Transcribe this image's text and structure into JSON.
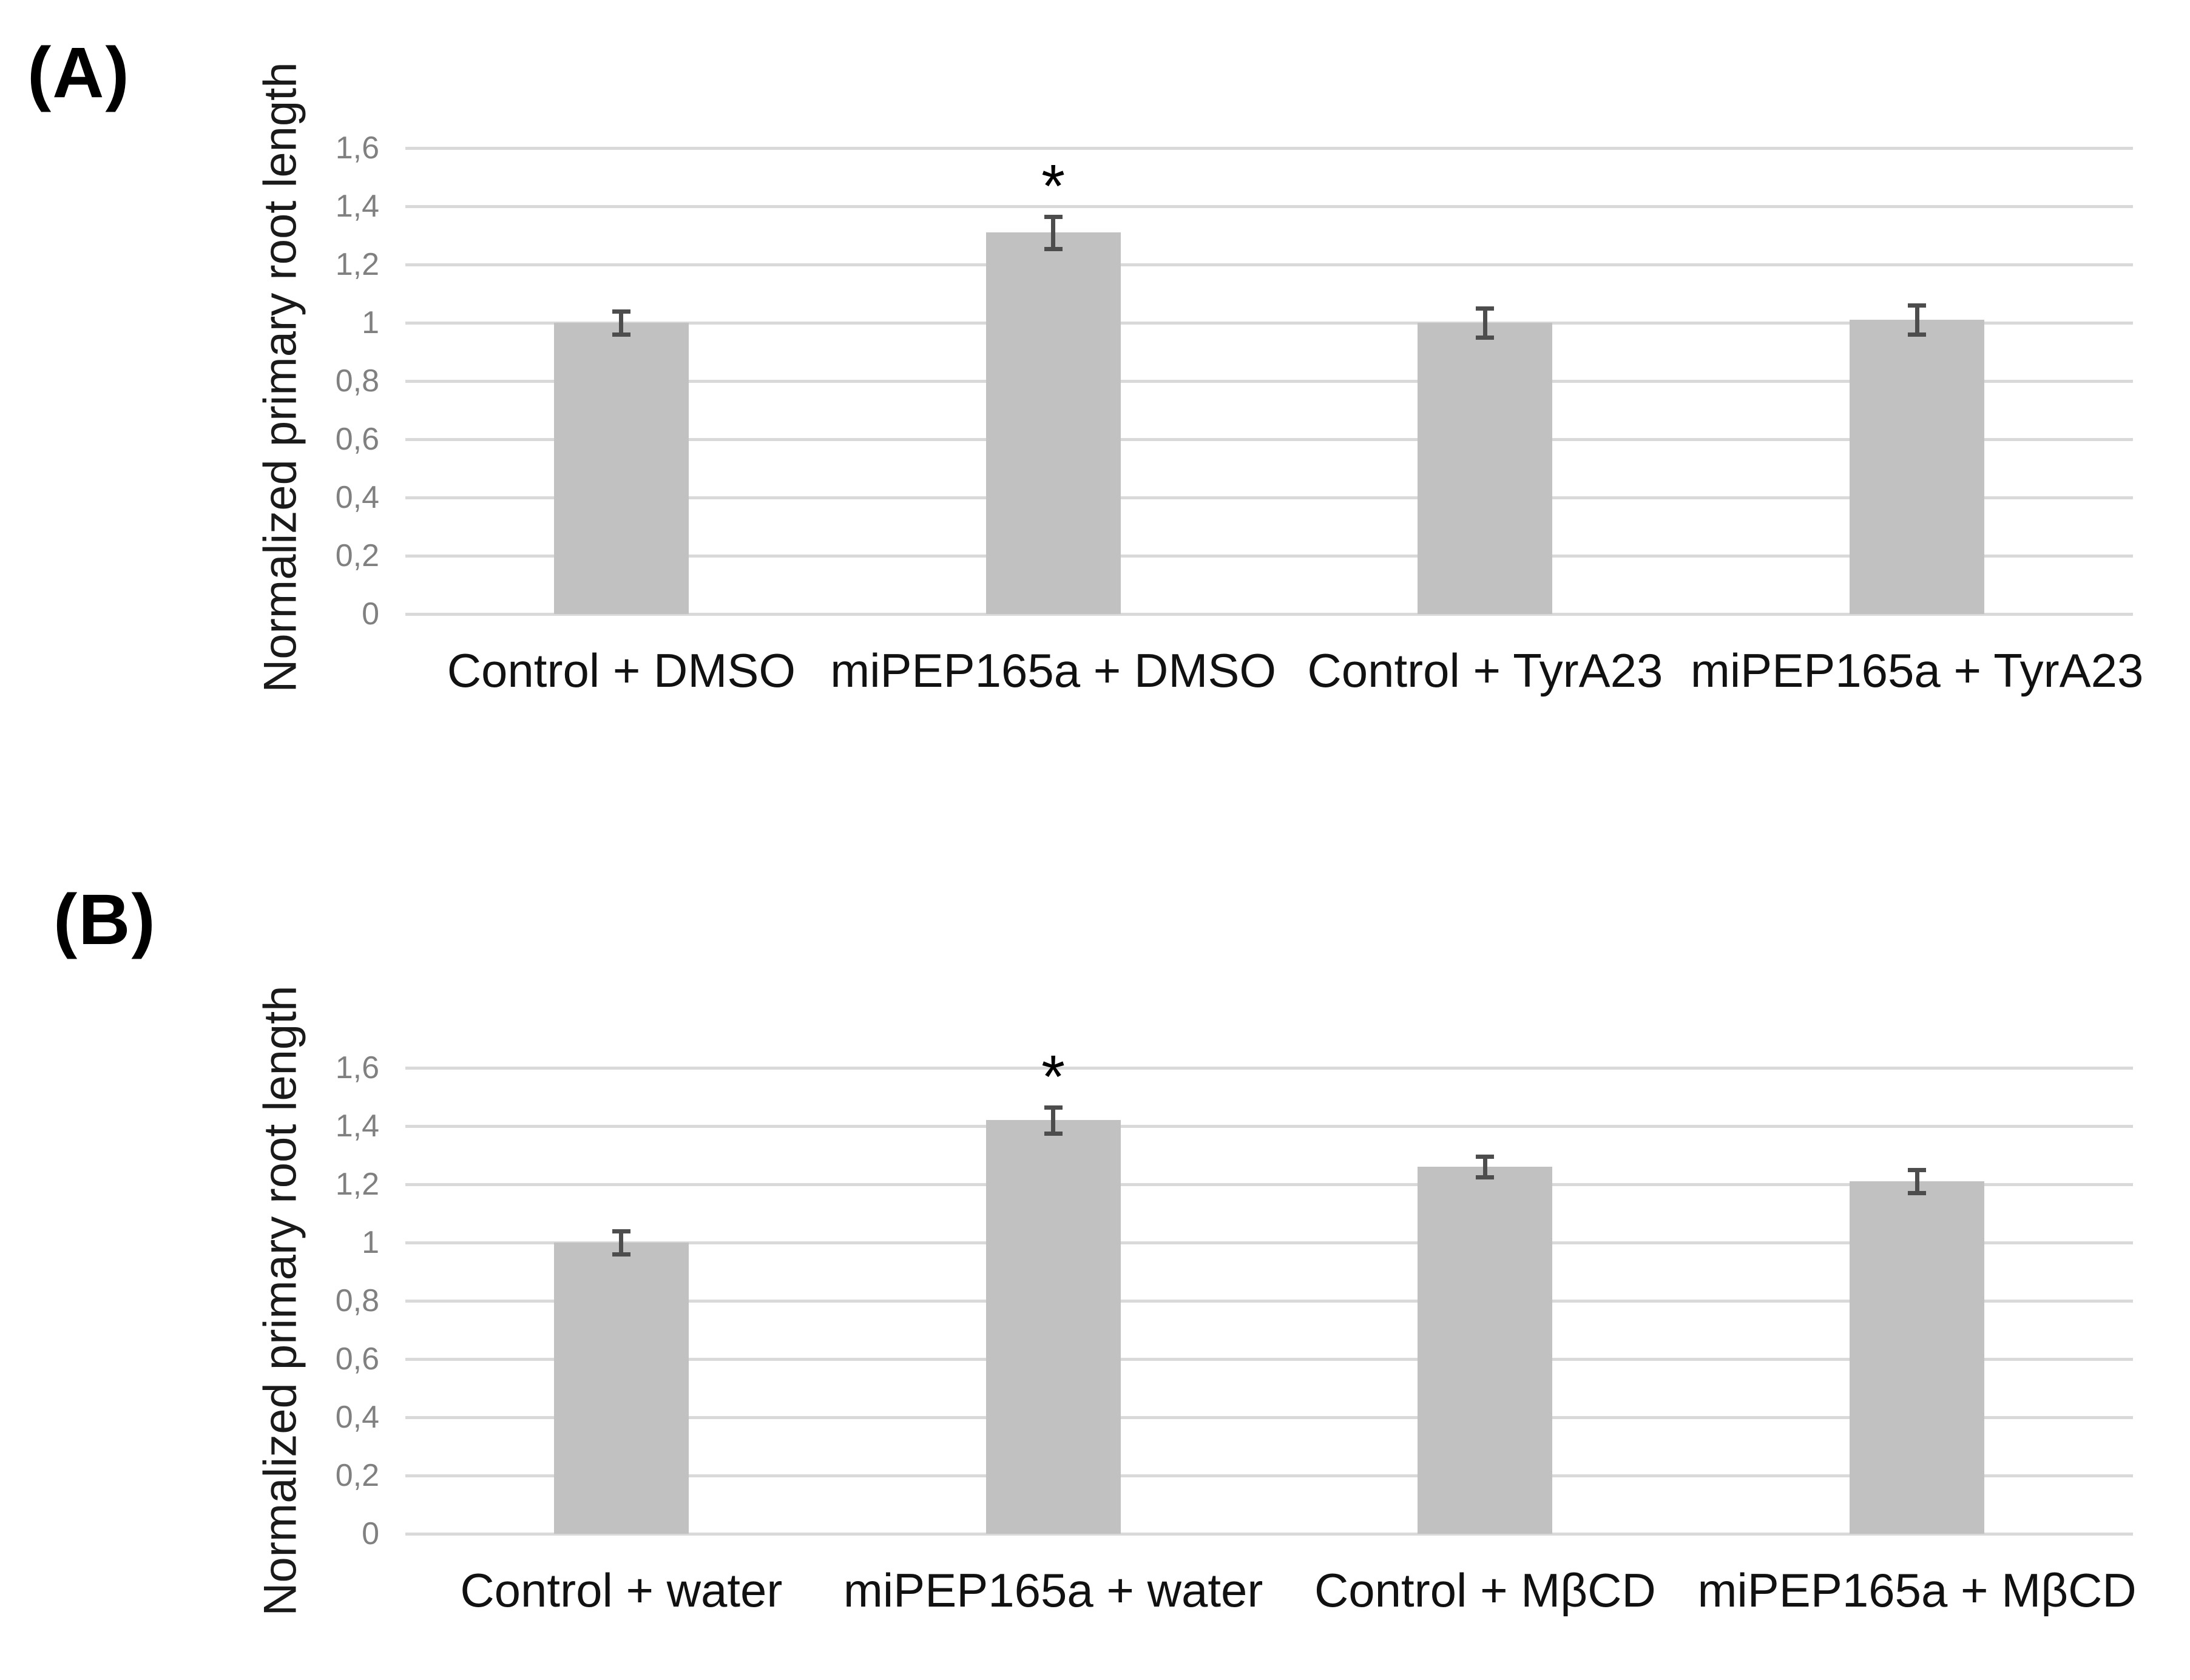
{
  "colors": {
    "background": "#ffffff",
    "bar_fill": "#c1c1c1",
    "gridline": "#d9d9d9",
    "error_bar": "#4d4d4d",
    "tick_text": "#808080",
    "label_text": "#111111"
  },
  "chart_data": [
    {
      "type": "bar",
      "panel_label": "(A)",
      "ylabel": "Normalized primary root length",
      "xlabel": "",
      "categories": [
        "Control + DMSO",
        "miPEP165a + DMSO",
        "Control + TyrA23",
        "miPEP165a + TyrA23"
      ],
      "values": [
        1.0,
        1.31,
        1.0,
        1.01
      ],
      "errors": [
        0.04,
        0.055,
        0.05,
        0.05
      ],
      "significance": [
        "",
        "*",
        "",
        ""
      ],
      "ylim": [
        0,
        1.6
      ],
      "ytick_step": 0.2,
      "ytick_labels": [
        "0",
        "0,2",
        "0,4",
        "0,6",
        "0,8",
        "1",
        "1,2",
        "1,4",
        "1,6"
      ],
      "grid": true,
      "legend": "none"
    },
    {
      "type": "bar",
      "panel_label": "(B)",
      "ylabel": "Normalized primary root length",
      "xlabel": "",
      "categories": [
        "Control + water",
        "miPEP165a + water",
        "Control + MβCD",
        "miPEP165a + MβCD"
      ],
      "values": [
        1.0,
        1.42,
        1.26,
        1.21
      ],
      "errors": [
        0.04,
        0.045,
        0.035,
        0.04
      ],
      "significance": [
        "",
        "*",
        "",
        ""
      ],
      "ylim": [
        0,
        1.6
      ],
      "ytick_step": 0.2,
      "ytick_labels": [
        "0",
        "0,2",
        "0,4",
        "0,6",
        "0,8",
        "1",
        "1,2",
        "1,4",
        "1,6"
      ],
      "grid": true,
      "legend": "none"
    }
  ]
}
